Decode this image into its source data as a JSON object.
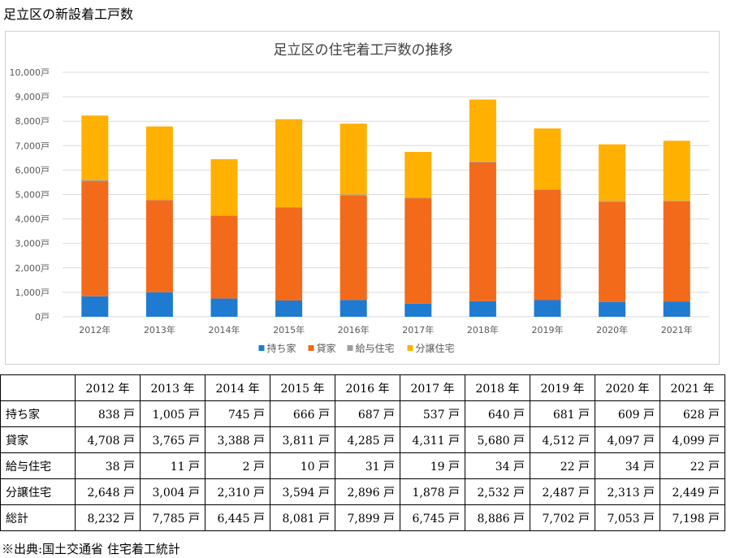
{
  "page_title": "足立区の新設着工戸数",
  "source_note": "※出典:国土交通省 住宅着工統計",
  "colors": {
    "持ち家": "#1f7bd1",
    "貸家": "#f36a1b",
    "給与住宅": "#9e9e9e",
    "分譲住宅": "#ffb000",
    "grid": "#d9d9d9"
  },
  "chart_data": {
    "type": "bar",
    "stacked": true,
    "title": "足立区の住宅着工戸数の推移",
    "categories": [
      "2012年",
      "2013年",
      "2014年",
      "2015年",
      "2016年",
      "2017年",
      "2018年",
      "2019年",
      "2020年",
      "2021年"
    ],
    "series": [
      {
        "name": "持ち家",
        "values": [
          838,
          1005,
          745,
          666,
          687,
          537,
          640,
          681,
          609,
          628
        ]
      },
      {
        "name": "貸家",
        "values": [
          4708,
          3765,
          3388,
          3811,
          4285,
          4311,
          5680,
          4512,
          4097,
          4099
        ]
      },
      {
        "name": "給与住宅",
        "values": [
          38,
          11,
          2,
          10,
          31,
          19,
          34,
          22,
          34,
          22
        ]
      },
      {
        "name": "分譲住宅",
        "values": [
          2648,
          3004,
          2310,
          3594,
          2896,
          1878,
          2532,
          2487,
          2313,
          2449
        ]
      }
    ],
    "ylim": [
      0,
      10000
    ],
    "yticks": [
      "0戸",
      "1,000戸",
      "2,000戸",
      "3,000戸",
      "4,000戸",
      "5,000戸",
      "6,000戸",
      "7,000戸",
      "8,000戸",
      "9,000戸",
      "10,000戸"
    ],
    "grid": true,
    "legend_position": "bottom"
  },
  "table": {
    "headers": [
      "2012 年",
      "2013 年",
      "2014 年",
      "2015 年",
      "2016 年",
      "2017 年",
      "2018 年",
      "2019 年",
      "2020 年",
      "2021 年"
    ],
    "rows": [
      {
        "label": "持ち家",
        "cells": [
          "838 戸",
          "1,005 戸",
          "745 戸",
          "666 戸",
          "687 戸",
          "537 戸",
          "640 戸",
          "681 戸",
          "609 戸",
          "628 戸"
        ]
      },
      {
        "label": "貸家",
        "cells": [
          "4,708 戸",
          "3,765 戸",
          "3,388 戸",
          "3,811 戸",
          "4,285 戸",
          "4,311 戸",
          "5,680 戸",
          "4,512 戸",
          "4,097 戸",
          "4,099 戸"
        ]
      },
      {
        "label": "給与住宅",
        "cells": [
          "38 戸",
          "11 戸",
          "2 戸",
          "10 戸",
          "31 戸",
          "19 戸",
          "34 戸",
          "22 戸",
          "34 戸",
          "22 戸"
        ]
      },
      {
        "label": "分譲住宅",
        "cells": [
          "2,648 戸",
          "3,004 戸",
          "2,310 戸",
          "3,594 戸",
          "2,896 戸",
          "1,878 戸",
          "2,532 戸",
          "2,487 戸",
          "2,313 戸",
          "2,449 戸"
        ]
      },
      {
        "label": "総計",
        "cells": [
          "8,232 戸",
          "7,785 戸",
          "6,445 戸",
          "8,081 戸",
          "7,899 戸",
          "6,745 戸",
          "8,886 戸",
          "7,702 戸",
          "7,053 戸",
          "7,198 戸"
        ]
      }
    ]
  }
}
